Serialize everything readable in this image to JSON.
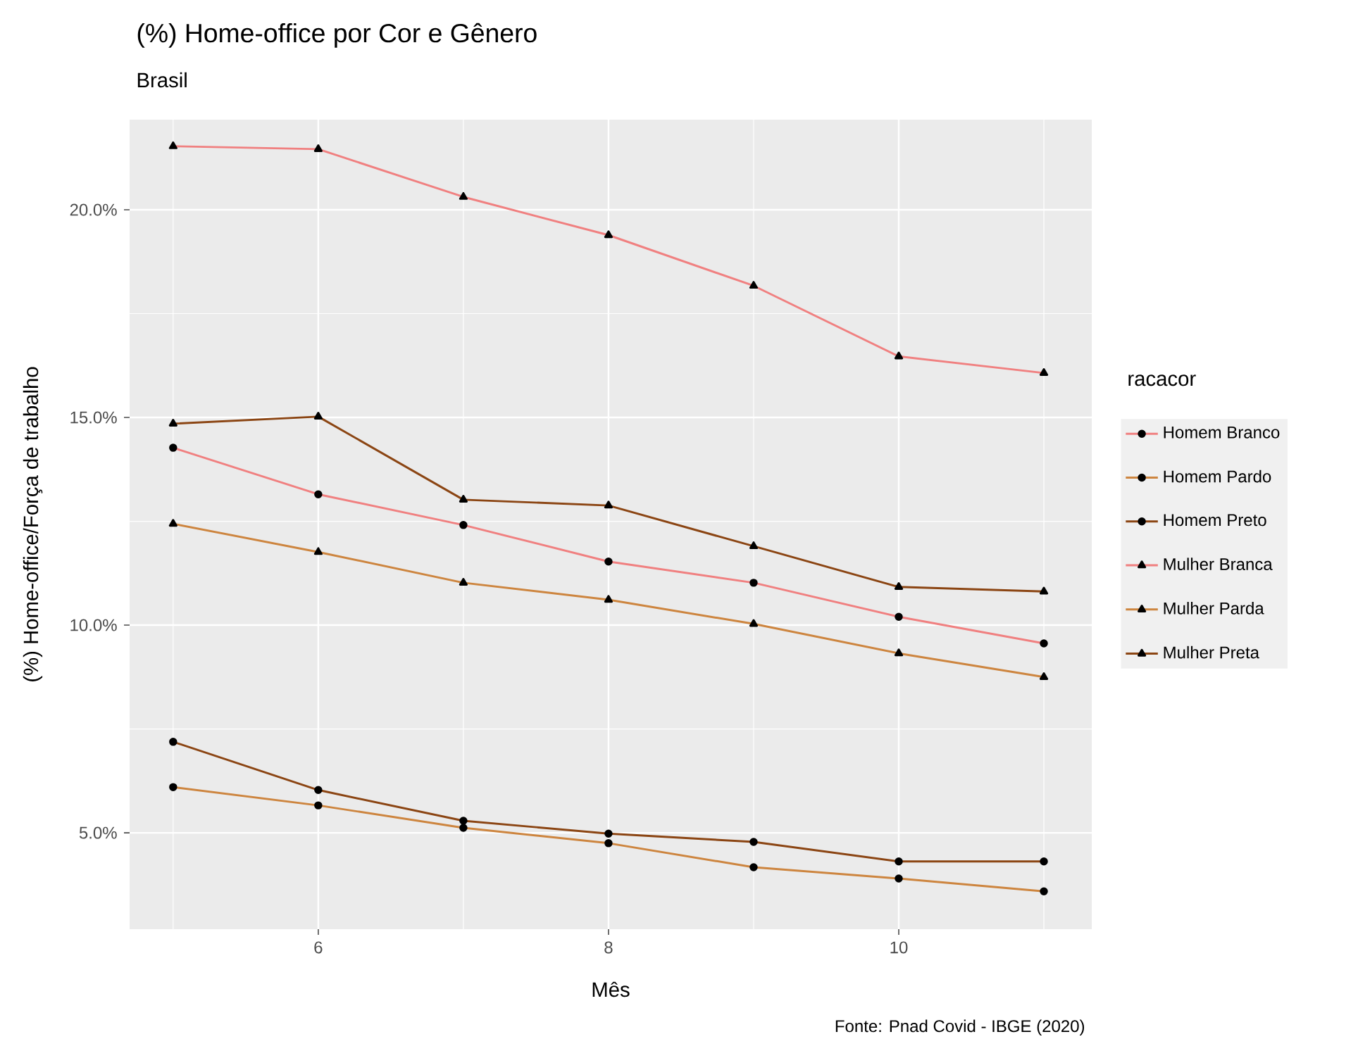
{
  "chart_data": {
    "type": "line",
    "title": "(%) Home-office por Cor e Gênero",
    "subtitle": "Brasil",
    "xlabel": "Mês",
    "ylabel": "(%) Home-office/Força de trabalho",
    "legend_title": "racacor",
    "annotations": [
      "Fonte: Pnad Covid - IBGE (2020)"
    ],
    "x": [
      5,
      6,
      7,
      8,
      9,
      10,
      11
    ],
    "series": [
      {
        "name": "Homem Branco",
        "color": "#f08080",
        "marker": "circle",
        "values": [
          14.27,
          13.15,
          12.41,
          11.53,
          11.02,
          10.2,
          9.56
        ]
      },
      {
        "name": "Homem Pardo",
        "color": "#cd853f",
        "marker": "circle",
        "values": [
          6.1,
          5.66,
          5.12,
          4.75,
          4.17,
          3.9,
          3.59
        ]
      },
      {
        "name": "Homem Preto",
        "color": "#8b4513",
        "marker": "circle",
        "values": [
          7.19,
          6.03,
          5.29,
          4.98,
          4.78,
          4.31,
          4.31
        ]
      },
      {
        "name": "Mulher Branca",
        "color": "#f08080",
        "marker": "triangle",
        "values": [
          21.53,
          21.46,
          20.31,
          19.39,
          18.17,
          16.47,
          16.07
        ]
      },
      {
        "name": "Mulher Parda",
        "color": "#cd853f",
        "marker": "triangle",
        "values": [
          12.44,
          11.76,
          11.02,
          10.61,
          10.03,
          9.32,
          8.75
        ]
      },
      {
        "name": "Mulher Preta",
        "color": "#8b4513",
        "marker": "triangle",
        "values": [
          14.85,
          15.02,
          13.02,
          12.88,
          11.9,
          10.92,
          10.81
        ]
      }
    ],
    "xlim": [
      4.7,
      11.33
    ],
    "ylim": [
      2.68,
      22.17
    ],
    "xticks": [
      6,
      8,
      10
    ],
    "yticks": [
      {
        "value": 5,
        "label": "5.0%"
      },
      {
        "value": 10,
        "label": "10.0%"
      },
      {
        "value": 15,
        "label": "15.0%"
      },
      {
        "value": 20,
        "label": "20.0%"
      }
    ],
    "grid": true,
    "legend": "right",
    "line_style": "solid"
  }
}
